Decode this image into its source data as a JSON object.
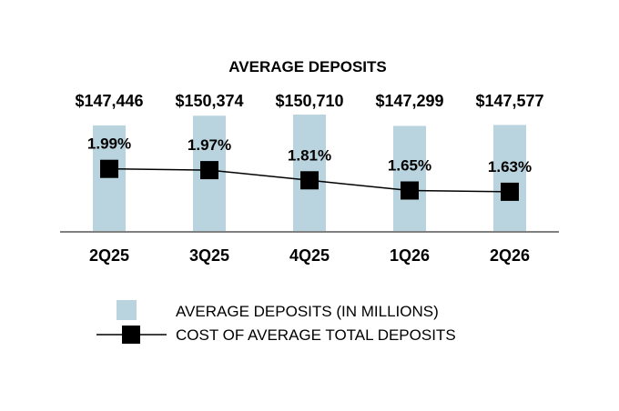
{
  "chart_data": {
    "type": "bar",
    "title": "AVERAGE DEPOSITS",
    "categories": [
      "2Q25",
      "3Q25",
      "4Q25",
      "1Q26",
      "2Q26"
    ],
    "series": [
      {
        "name": "AVERAGE DEPOSITS (IN MILLIONS)",
        "type": "bar",
        "values": [
          147446,
          150374,
          150710,
          147299,
          147577
        ],
        "labels": [
          "$147,446",
          "$150,374",
          "$150,710",
          "$147,299",
          "$147,577"
        ],
        "color": "#b9d3df"
      },
      {
        "name": "COST OF AVERAGE TOTAL DEPOSITS",
        "type": "line",
        "values": [
          1.99,
          1.97,
          1.81,
          1.65,
          1.63
        ],
        "labels": [
          "1.99%",
          "1.97%",
          "1.81%",
          "1.65%",
          "1.63%"
        ],
        "color": "#000000"
      }
    ],
    "legend_position": "bottom",
    "grid": false
  }
}
